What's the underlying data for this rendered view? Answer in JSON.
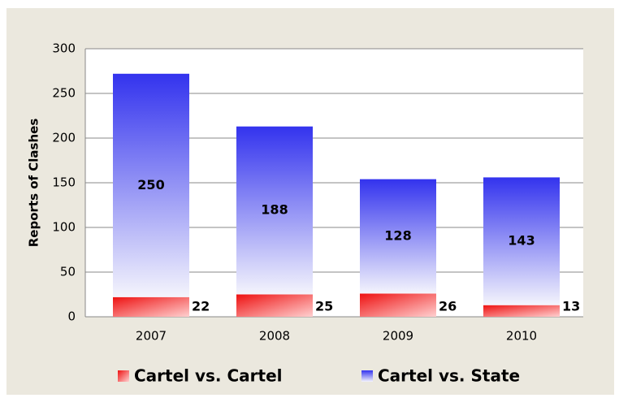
{
  "chart_data": {
    "type": "stacked_bar",
    "y_label": "Reports of Clashes",
    "categories": [
      "2007",
      "2008",
      "2009",
      "2010"
    ],
    "series": [
      {
        "name": "Cartel vs. Cartel",
        "color": "#ee1111",
        "values": [
          22,
          25,
          26,
          13
        ]
      },
      {
        "name": "Cartel vs. State",
        "color": "#3333ee",
        "values": [
          250,
          188,
          128,
          143
        ]
      }
    ],
    "ylim": [
      0,
      300
    ],
    "yticks": [
      0,
      50,
      100,
      150,
      200,
      250,
      300
    ],
    "grid": true,
    "legend": "bottom"
  }
}
